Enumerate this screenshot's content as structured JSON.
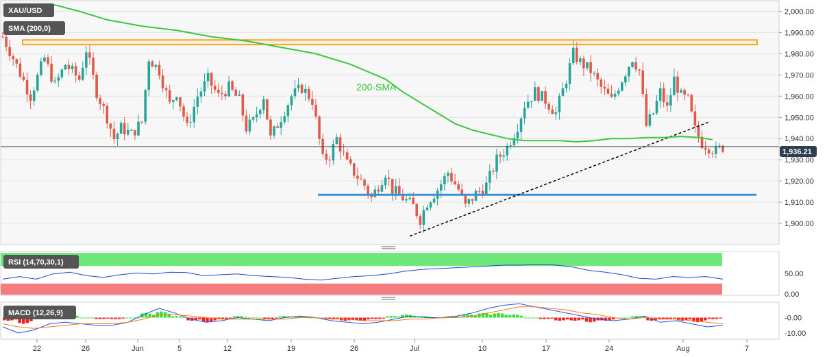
{
  "chart_data": [
    {
      "type": "candlestick",
      "symbol": "XAU/USD",
      "overlay": "SMA (200,0)",
      "annotation": "200-SMA",
      "last_price": "1,936.21",
      "ylim": [
        1890,
        2005
      ],
      "y_ticks": [
        "2,000.00",
        "1,990.00",
        "1,980.00",
        "1,970.00",
        "1,960.00",
        "1,950.00",
        "1,940.00",
        "1,930.00",
        "1,920.00",
        "1,910.00",
        "1,900.00"
      ],
      "x_ticks": [
        "22",
        "26",
        "Jun",
        "5",
        "12",
        "19",
        "26",
        "Jul",
        "10",
        "17",
        "24",
        "Aug",
        "7"
      ],
      "price_path": [
        [
          0,
          1988
        ],
        [
          3,
          1978
        ],
        [
          8,
          1960
        ],
        [
          12,
          1978
        ],
        [
          15,
          1965
        ],
        [
          18,
          1975
        ],
        [
          22,
          1968
        ],
        [
          24,
          1982
        ],
        [
          27,
          1962
        ],
        [
          30,
          1950
        ],
        [
          32,
          1940
        ],
        [
          34,
          1945
        ],
        [
          37,
          1942
        ],
        [
          40,
          1948
        ],
        [
          42,
          1978
        ],
        [
          45,
          1972
        ],
        [
          48,
          1956
        ],
        [
          50,
          1962
        ],
        [
          53,
          1945
        ],
        [
          56,
          1960
        ],
        [
          59,
          1968
        ],
        [
          62,
          1960
        ],
        [
          65,
          1964
        ],
        [
          68,
          1958
        ],
        [
          70,
          1945
        ],
        [
          72,
          1948
        ],
        [
          75,
          1960
        ],
        [
          77,
          1940
        ],
        [
          80,
          1950
        ],
        [
          83,
          1960
        ],
        [
          86,
          1964
        ],
        [
          89,
          1958
        ],
        [
          92,
          1930
        ],
        [
          94,
          1932
        ],
        [
          96,
          1940
        ],
        [
          99,
          1928
        ],
        [
          101,
          1924
        ],
        [
          104,
          1918
        ],
        [
          106,
          1912
        ],
        [
          108,
          1918
        ],
        [
          110,
          1924
        ],
        [
          112,
          1916
        ],
        [
          115,
          1912
        ],
        [
          118,
          1908
        ],
        [
          120,
          1902
        ],
        [
          122,
          1910
        ],
        [
          125,
          1916
        ],
        [
          128,
          1924
        ],
        [
          131,
          1916
        ],
        [
          133,
          1908
        ],
        [
          136,
          1914
        ],
        [
          139,
          1918
        ],
        [
          142,
          1930
        ],
        [
          145,
          1936
        ],
        [
          148,
          1946
        ],
        [
          150,
          1956
        ],
        [
          153,
          1962
        ],
        [
          156,
          1958
        ],
        [
          159,
          1952
        ],
        [
          162,
          1968
        ],
        [
          164,
          1980
        ],
        [
          166,
          1976
        ],
        [
          169,
          1972
        ],
        [
          172,
          1964
        ],
        [
          175,
          1958
        ],
        [
          178,
          1968
        ],
        [
          181,
          1978
        ],
        [
          183,
          1972
        ],
        [
          185,
          1946
        ],
        [
          187,
          1952
        ],
        [
          189,
          1962
        ],
        [
          191,
          1954
        ],
        [
          193,
          1968
        ],
        [
          195,
          1960
        ],
        [
          197,
          1958
        ],
        [
          199,
          1944
        ],
        [
          201,
          1938
        ],
        [
          203,
          1936
        ],
        [
          205,
          1934
        ],
        [
          207,
          1936
        ]
      ],
      "support_zone": [
        1984.3,
        1986.5
      ],
      "support_line": 1913.5,
      "trendline": {
        "from": [
          117,
          1894
        ],
        "to": [
          198,
          1948
        ]
      },
      "current_line": 1936.21,
      "sma_path": [
        [
          0,
          2003
        ],
        [
          8,
          2003
        ],
        [
          15,
          2003
        ],
        [
          22,
          2000
        ],
        [
          30,
          1996
        ],
        [
          40,
          1993
        ],
        [
          50,
          1991
        ],
        [
          60,
          1988
        ],
        [
          70,
          1986
        ],
        [
          80,
          1983
        ],
        [
          90,
          1980
        ],
        [
          100,
          1975
        ],
        [
          110,
          1968
        ],
        [
          115,
          1962
        ],
        [
          120,
          1957
        ],
        [
          125,
          1952
        ],
        [
          130,
          1947
        ],
        [
          135,
          1944
        ],
        [
          140,
          1942
        ],
        [
          145,
          1940
        ],
        [
          150,
          1939
        ],
        [
          155,
          1939
        ],
        [
          160,
          1939
        ],
        [
          165,
          1938.5
        ],
        [
          170,
          1939
        ],
        [
          175,
          1940
        ],
        [
          180,
          1940
        ],
        [
          185,
          1940.5
        ],
        [
          190,
          1940.5
        ],
        [
          195,
          1941
        ],
        [
          200,
          1940.5
        ],
        [
          204,
          1939.5
        ]
      ]
    },
    {
      "type": "line",
      "name": "RSI (14,70,30,1)",
      "y_ticks": [
        "50.00",
        "0.00"
      ],
      "ylim": [
        0,
        100
      ],
      "overbought": 70,
      "oversold": 30,
      "values": [
        40,
        46,
        40,
        52,
        56,
        48,
        44,
        50,
        54,
        52,
        56,
        55,
        48,
        50,
        52,
        48,
        46,
        44,
        40,
        38,
        42,
        46,
        48,
        52,
        58,
        62,
        64,
        66,
        68,
        70,
        72,
        72,
        74,
        72,
        68,
        60,
        56,
        50,
        42,
        40,
        46,
        44,
        46,
        40
      ]
    },
    {
      "type": "macd",
      "name": "MACD (12,26,9)",
      "y_ticks": [
        "-0.00",
        "-10.00"
      ],
      "ylim": [
        -14,
        10
      ],
      "macd": [
        -6,
        -10,
        -8,
        -4,
        -3,
        -4,
        -5,
        -5,
        -3,
        2,
        6,
        3,
        -1,
        -3,
        -2,
        0,
        -1,
        -2,
        0,
        1,
        0,
        -2,
        -3,
        -4,
        -3,
        -1,
        1,
        0,
        0,
        1,
        3,
        6,
        8,
        9,
        7,
        5,
        3,
        1,
        -1,
        -2,
        -1,
        1,
        -3,
        -2,
        -4,
        -6,
        -5
      ],
      "signal": [
        -4,
        -6,
        -7,
        -6,
        -5,
        -4,
        -4,
        -4,
        -3,
        -1,
        2,
        2,
        1,
        0,
        -1,
        -1,
        -1,
        -1,
        -1,
        0,
        0,
        -1,
        -1,
        -2,
        -2,
        -2,
        -1,
        -1,
        0,
        0,
        1,
        3,
        5,
        7,
        7,
        6,
        5,
        3,
        2,
        0,
        -1,
        0,
        -1,
        -1,
        -2,
        -3,
        -4
      ],
      "histogram": [
        -2,
        -4,
        -1,
        2,
        2,
        0,
        -1,
        -1,
        0,
        3,
        4,
        1,
        -2,
        -3,
        -1,
        1,
        0,
        -1,
        1,
        1,
        0,
        -1,
        -2,
        -2,
        -1,
        1,
        2,
        1,
        0,
        1,
        2,
        3,
        3,
        2,
        0,
        -1,
        -2,
        -2,
        -3,
        -2,
        0,
        1,
        -2,
        -1,
        -2,
        -3,
        -1
      ]
    }
  ],
  "colors": {
    "up": "#26a69a",
    "down": "#e05a4a",
    "sma": "#3cc83c",
    "zone": "#f5a623",
    "support": "#3a8fd6",
    "trend": "#000000",
    "rsi_line": "#2244cc",
    "rsi_ob": "#6ee87a",
    "rsi_os": "#f57c7c",
    "macd_line": "#2255dd",
    "signal_line": "#ff7a1a",
    "hist_up": "#36e036",
    "hist_down": "#ee2222"
  }
}
